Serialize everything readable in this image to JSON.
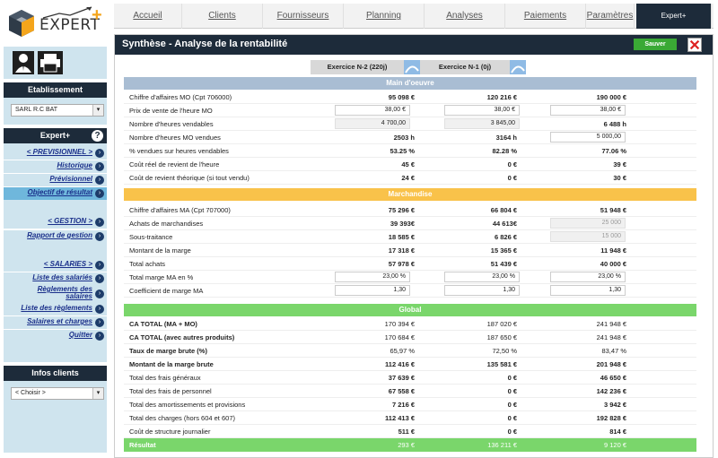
{
  "logo": {
    "brand": "EXPERT",
    "plus": "+"
  },
  "sidebar": {
    "etablissement_title": "Etablissement",
    "etablissement_value": "SARL R.C BAT",
    "expert_title": "Expert+",
    "menu": [
      {
        "label": "< PREVISIONNEL >"
      },
      {
        "label": "Historique"
      },
      {
        "label": "Prévisionnel"
      },
      {
        "label": "Objectif de résultat"
      },
      {
        "label": "< GESTION >"
      },
      {
        "label": "Rapport de gestion"
      },
      {
        "label": "< SALARIES >"
      },
      {
        "label": "Liste des salariés"
      },
      {
        "label": "Règlements des salaires"
      },
      {
        "label": "Liste des règlements"
      },
      {
        "label": "Salaires et charges"
      },
      {
        "label": "Quitter"
      }
    ],
    "infos_title": "Infos clients",
    "infos_select": "< Choisir >"
  },
  "tabs": [
    "Accueil",
    "Clients",
    "Fournisseurs",
    "Planning",
    "Analyses",
    "Paiements",
    "Paramètres",
    "Expert+"
  ],
  "main": {
    "title": "Synthèse - Analyse de la rentabilité",
    "save_label": "Sauver",
    "exercises": [
      "Exercice N-2 (220j)",
      "Exercice N-1 (0j)"
    ]
  },
  "sections": {
    "mo": "Main d'oeuvre",
    "ma": "Marchandise",
    "gl": "Global"
  },
  "rows": {
    "mo": [
      {
        "label": "Chiffre d'affaires MO (Cpt 706000)",
        "v": [
          "95 098 €",
          "120 216 €",
          "190 000 €"
        ]
      },
      {
        "label": "Prix de vente de l'heure MO",
        "v": [
          "38,00 €",
          "38,00 €",
          "38,00 €"
        ]
      },
      {
        "label": "Nombre d'heures vendables",
        "v": [
          "4 700,00",
          "3 845,00",
          "6 488 h"
        ]
      },
      {
        "label": "Nombre d'heures MO vendues",
        "v": [
          "2503 h",
          "3164 h",
          "5 000,00"
        ]
      },
      {
        "label": "% vendues sur heures vendables",
        "v": [
          "53.25 %",
          "82.28 %",
          "77.06 %"
        ]
      },
      {
        "label": "Coût réel de revient de l'heure",
        "v": [
          "45 €",
          "0 €",
          "39 €"
        ]
      },
      {
        "label": "Coût de revient théorique (si tout vendu)",
        "v": [
          "24 €",
          "0 €",
          "30 €"
        ]
      }
    ],
    "ma": [
      {
        "label": "Chiffre d'affaires MA (Cpt 707000)",
        "v": [
          "75 296 €",
          "66 804 €",
          "51 948 €"
        ]
      },
      {
        "label": "Achats de marchandises",
        "v": [
          "39 393€",
          "44 613€",
          "25 000"
        ]
      },
      {
        "label": "Sous-traitance",
        "v": [
          "18 585 €",
          "6 826 €",
          "15 000"
        ]
      },
      {
        "label": "Montant de la marge",
        "v": [
          "17 318 €",
          "15 365 €",
          "11 948 €"
        ]
      },
      {
        "label": "Total achats",
        "v": [
          "57 978 €",
          "51 439 €",
          "40 000 €"
        ]
      },
      {
        "label": "Total marge MA en %",
        "v": [
          "23,00 %",
          "23,00 %",
          "23,00 %"
        ]
      },
      {
        "label": "Coefficient de marge MA",
        "v": [
          "1,30",
          "1,30",
          "1,30"
        ]
      }
    ],
    "gl": [
      {
        "label": "CA TOTAL (MA + MO)",
        "v": [
          "170 394 €",
          "187 020 €",
          "241 948 €"
        ]
      },
      {
        "label": "CA TOTAL (avec autres produits)",
        "v": [
          "170 684 €",
          "187 650 €",
          "241 948 €"
        ]
      },
      {
        "label": "Taux de marge brute (%)",
        "v": [
          "65,97 %",
          "72,50 %",
          "83,47 %"
        ]
      },
      {
        "label": "Montant de la marge brute",
        "v": [
          "112 416 €",
          "135 581 €",
          "201 948 €"
        ]
      },
      {
        "label": "Total des frais généraux",
        "v": [
          "37 639 €",
          "0 €",
          "46 650 €"
        ]
      },
      {
        "label": "Total des frais de personnel",
        "v": [
          "67 558 €",
          "0 €",
          "142 236 €"
        ]
      },
      {
        "label": "Total des amortissements et provisions",
        "v": [
          "7 216 €",
          "0 €",
          "3 942 €"
        ]
      },
      {
        "label": "Total des charges (hors 604 et 607)",
        "v": [
          "112 413 €",
          "0 €",
          "192 828 €"
        ]
      },
      {
        "label": "Coût de structure journalier",
        "v": [
          "511 €",
          "0 €",
          "814 €"
        ]
      },
      {
        "label": "Résultat",
        "v": [
          "293 €",
          "136 211 €",
          "9 120 €"
        ]
      }
    ]
  },
  "colors": {
    "navy": "#1d2b3a",
    "mo_head": "#a9bdd3",
    "ma_head": "#f9c24a",
    "gl_head": "#7ad66b",
    "save": "#3aa935"
  }
}
